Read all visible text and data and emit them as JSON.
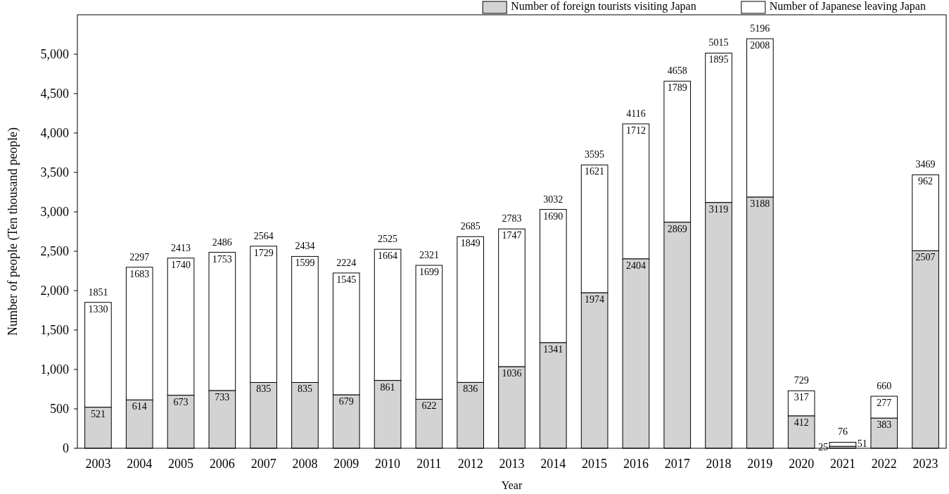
{
  "chart_data": {
    "type": "bar",
    "xlabel": "Year",
    "ylabel": "Number of people (Ten thousand people)",
    "categories": [
      "2003",
      "2004",
      "2005",
      "2006",
      "2007",
      "2008",
      "2009",
      "2010",
      "2011",
      "2012",
      "2013",
      "2014",
      "2015",
      "2016",
      "2017",
      "2018",
      "2019",
      "2020",
      "2021",
      "2022",
      "2023"
    ],
    "stacked": true,
    "series": [
      {
        "name": "Number of foreign tourists visiting Japan",
        "color": "#d3d3d3",
        "values": [
          521,
          614,
          673,
          733,
          835,
          835,
          679,
          861,
          622,
          836,
          1036,
          1341,
          1974,
          2404,
          2869,
          3119,
          3188,
          412,
          25,
          383,
          2507
        ]
      },
      {
        "name": "Number of Japanese leaving Japan",
        "color": "#ffffff",
        "values": [
          1330,
          1683,
          1740,
          1753,
          1729,
          1599,
          1545,
          1664,
          1699,
          1849,
          1747,
          1690,
          1621,
          1712,
          1789,
          1895,
          2008,
          317,
          51,
          277,
          962
        ]
      }
    ],
    "totals": [
      "1851",
      "2297",
      "2413",
      "2486",
      "2564",
      "2434",
      "2224",
      "2525",
      "2321",
      "2685",
      "2783",
      "3032",
      "3595",
      "4116",
      "4658",
      "5015",
      "5196",
      "729",
      "76",
      "660",
      "3469"
    ],
    "data_labels": true,
    "ylim": [
      0,
      5500
    ],
    "yticks": [
      {
        "value": 0,
        "label": "0"
      },
      {
        "value": 500,
        "label": "500"
      },
      {
        "value": 1000,
        "label": "1,000"
      },
      {
        "value": 1500,
        "label": "1,500"
      },
      {
        "value": 2000,
        "label": "2,000"
      },
      {
        "value": 2500,
        "label": "2,500"
      },
      {
        "value": 3000,
        "label": "3,000"
      },
      {
        "value": 3500,
        "label": "3,500"
      },
      {
        "value": 4000,
        "label": "4,000"
      },
      {
        "value": 4500,
        "label": "4,500"
      },
      {
        "value": 5000,
        "label": "5,000"
      }
    ],
    "grid": false,
    "legend": "top right"
  }
}
